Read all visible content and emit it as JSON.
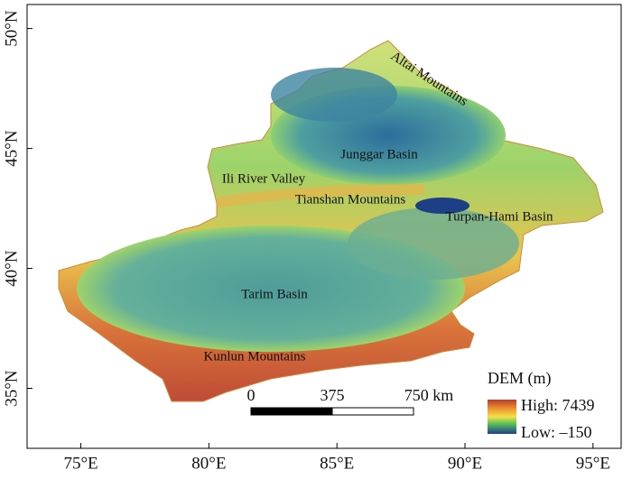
{
  "map": {
    "xlim": [
      72.9,
      96.1
    ],
    "ylim": [
      32.5,
      51.0
    ],
    "xticks": [
      {
        "value": 75,
        "label": "75°E"
      },
      {
        "value": 80,
        "label": "80°E"
      },
      {
        "value": 85,
        "label": "85°E"
      },
      {
        "value": 90,
        "label": "90°E"
      },
      {
        "value": 95,
        "label": "95°E"
      }
    ],
    "yticks": [
      {
        "value": 35,
        "label": "35°N"
      },
      {
        "value": 40,
        "label": "40°N"
      },
      {
        "value": 45,
        "label": "45°N"
      },
      {
        "value": 50,
        "label": "50°N"
      }
    ],
    "labels": [
      "Altai Mountains",
      "Junggar Basin",
      "Ili River Valley",
      "Tianshan Mountains",
      "Turpan-Hami Basin",
      "Tarim Basin",
      "Kunlun Mountains"
    ],
    "legend": {
      "title": "DEM (m)",
      "high": "High: 7439",
      "low": "Low: –150"
    },
    "scale_bar": [
      "0",
      "375",
      "750 km"
    ]
  }
}
